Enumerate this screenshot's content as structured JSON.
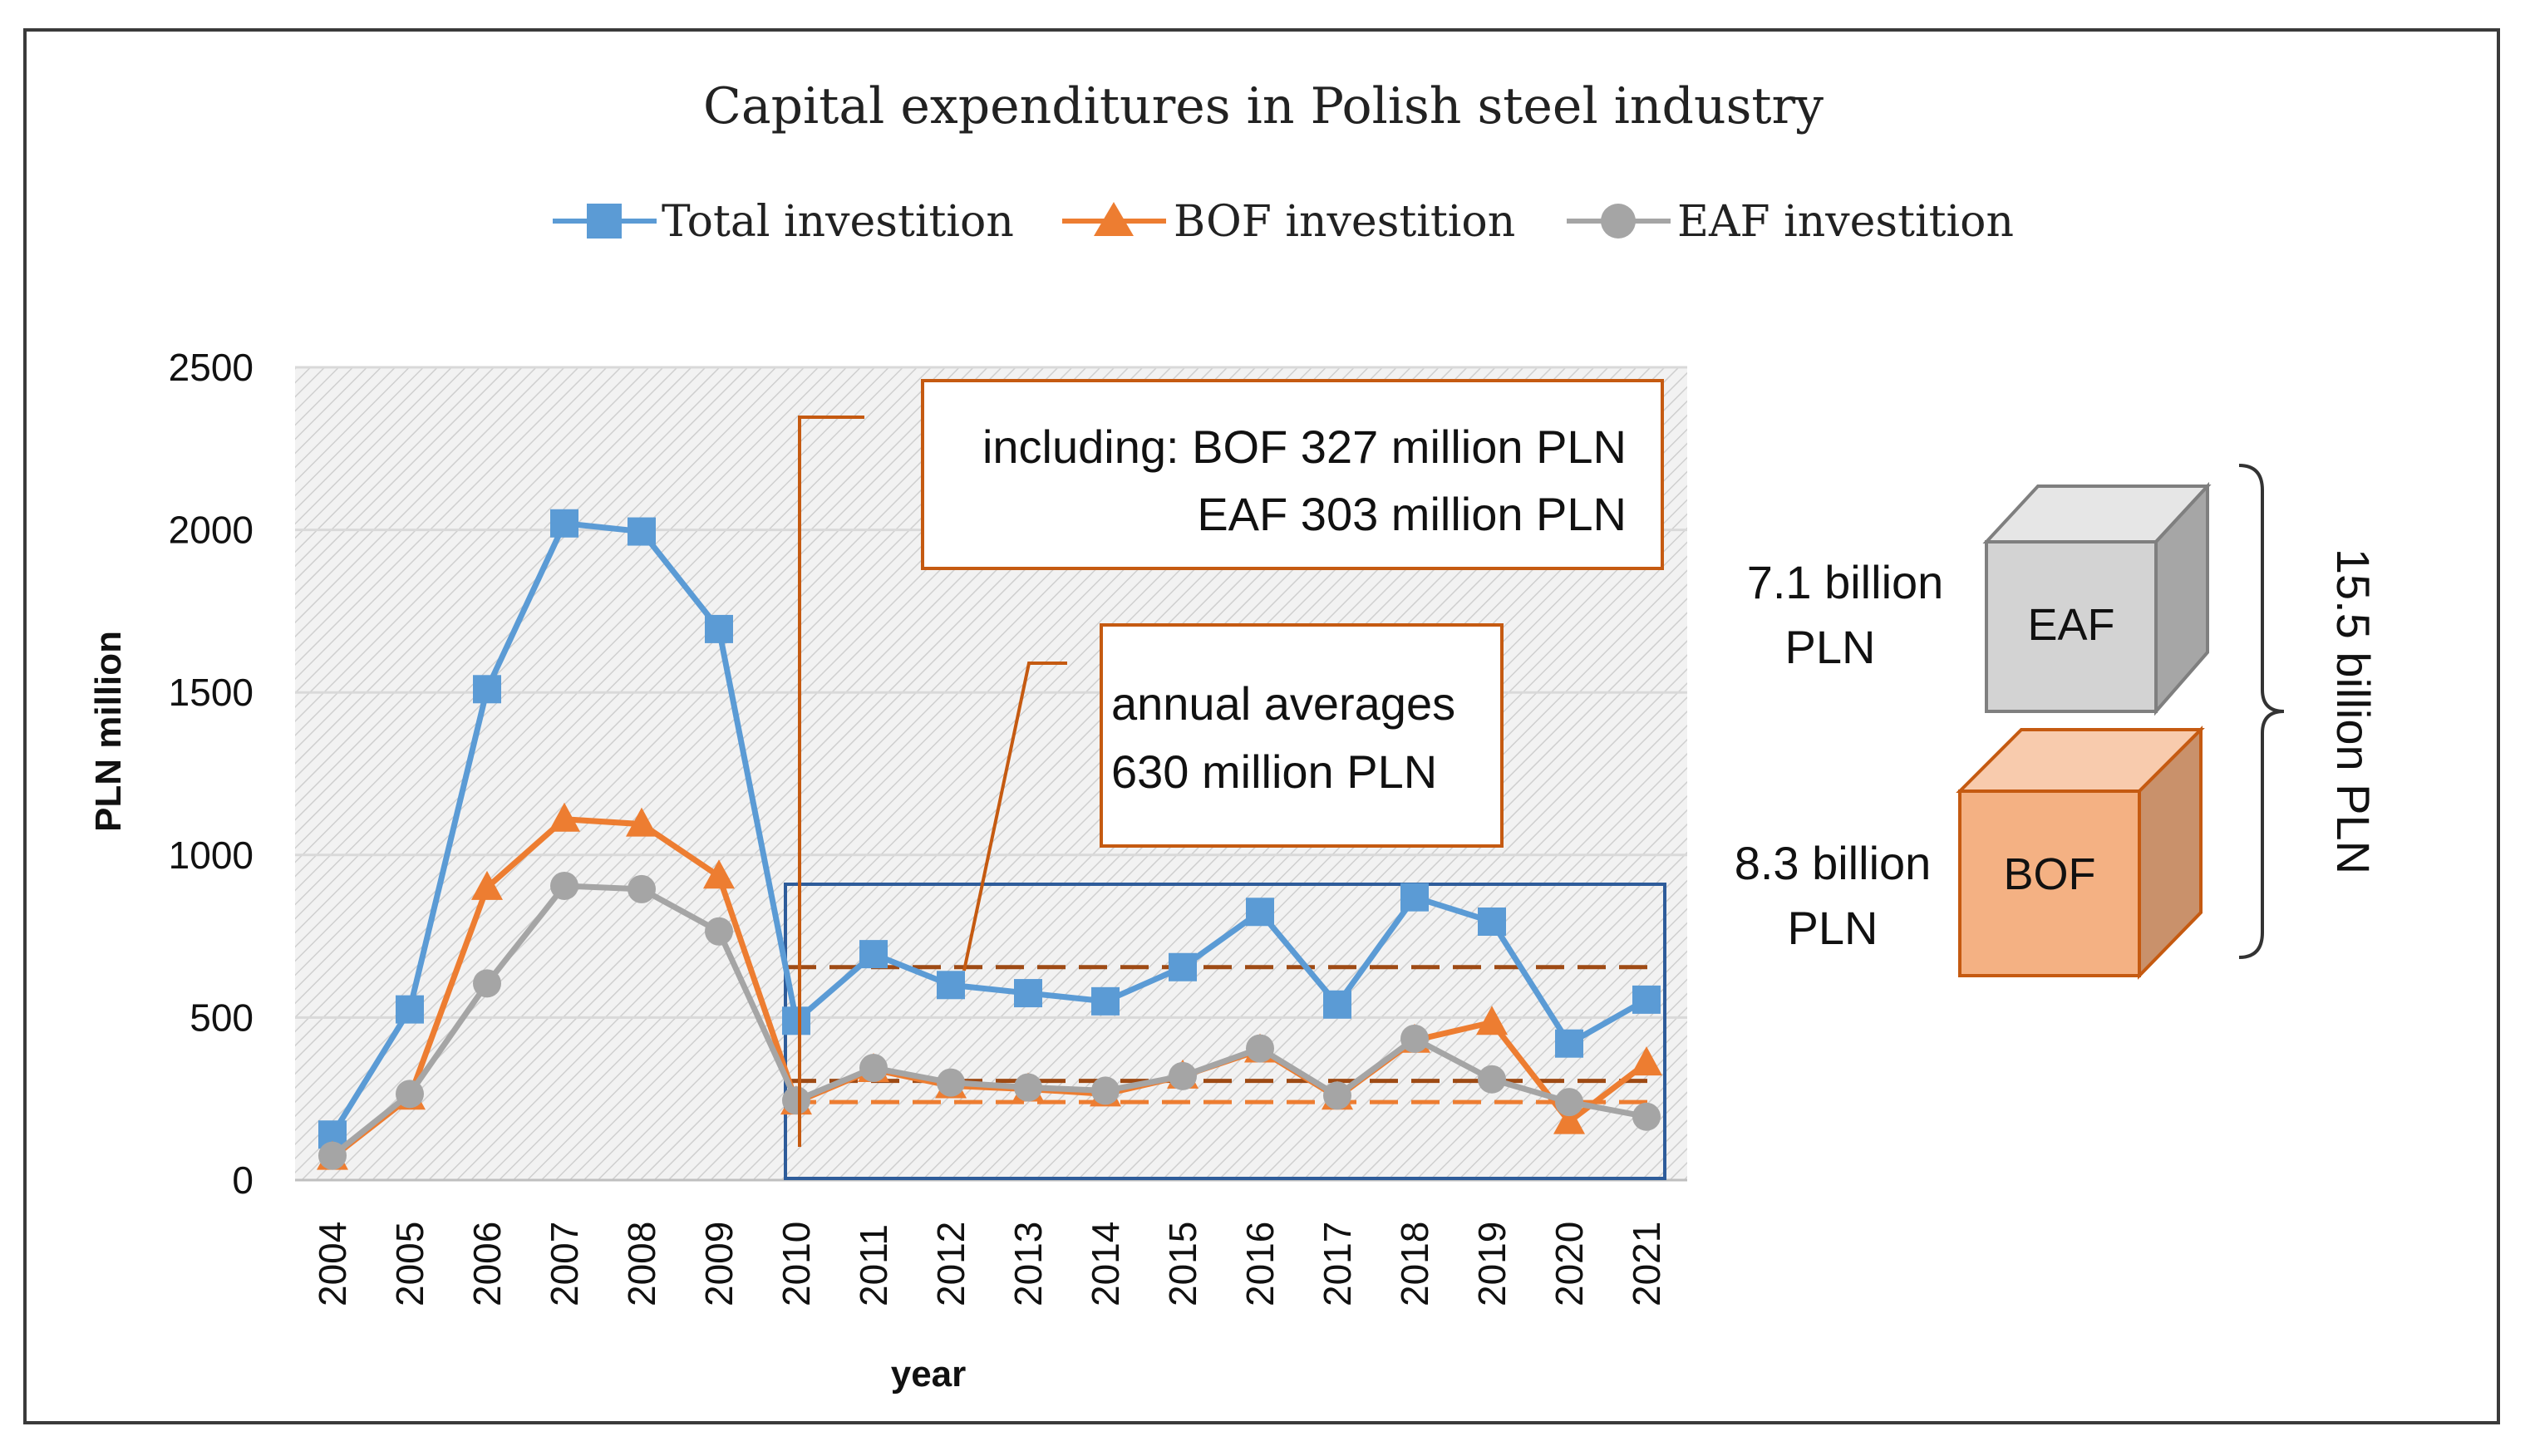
{
  "chart_data": {
    "type": "line",
    "title": "Capital expenditures in Polish steel industry",
    "xlabel": "year",
    "ylabel": "PLN million",
    "ylim": [
      0,
      2500
    ],
    "yticks": [
      "0",
      "500",
      "1000",
      "1500",
      "2000",
      "2500"
    ],
    "categories": [
      "2004",
      "2005",
      "2006",
      "2007",
      "2008",
      "2009",
      "2010",
      "2011",
      "2012",
      "2013",
      "2014",
      "2015",
      "2016",
      "2017",
      "2018",
      "2019",
      "2020",
      "2021"
    ],
    "series": [
      {
        "name": "Total investition",
        "color": "#5b9bd5",
        "marker": "square",
        "values": [
          140,
          525,
          1510,
          2020,
          1995,
          1695,
          490,
          695,
          600,
          575,
          550,
          655,
          825,
          540,
          870,
          795,
          420,
          555
        ]
      },
      {
        "name": "BOF investition",
        "color": "#ed7d31",
        "marker": "triangle",
        "values": [
          70,
          255,
          900,
          1110,
          1095,
          935,
          240,
          340,
          290,
          280,
          265,
          320,
          400,
          255,
          430,
          485,
          180,
          360
        ]
      },
      {
        "name": "EAF investition",
        "color": "#a5a5a5",
        "marker": "circle",
        "values": [
          75,
          265,
          605,
          905,
          895,
          765,
          245,
          345,
          300,
          285,
          275,
          320,
          405,
          260,
          435,
          310,
          240,
          195
        ]
      }
    ],
    "averages": [
      {
        "name": "total-average",
        "value": 655,
        "color": "#9e4a14"
      },
      {
        "name": "bof-average",
        "value": 305,
        "color": "#9e4a14"
      },
      {
        "name": "eaf-average",
        "value": 240,
        "color": "#ed7d31"
      }
    ],
    "annotations": {
      "including_line1": "including:  BOF 327 million  PLN",
      "including_line2": "EAF  303 million PLN",
      "averages_line1": "annual averages",
      "averages_line2": "630 million  PLN"
    },
    "summary": {
      "eaf_amount_line1": "7.1 billion",
      "eaf_amount_line2": "PLN",
      "eaf_label": "EAF",
      "bof_amount_line1": "8.3 billion",
      "bof_amount_line2": "PLN",
      "bof_label": "BOF",
      "total": "15.5 billion PLN",
      "eaf_color": "#d3d3d3",
      "bof_color": "#f4b183"
    }
  }
}
